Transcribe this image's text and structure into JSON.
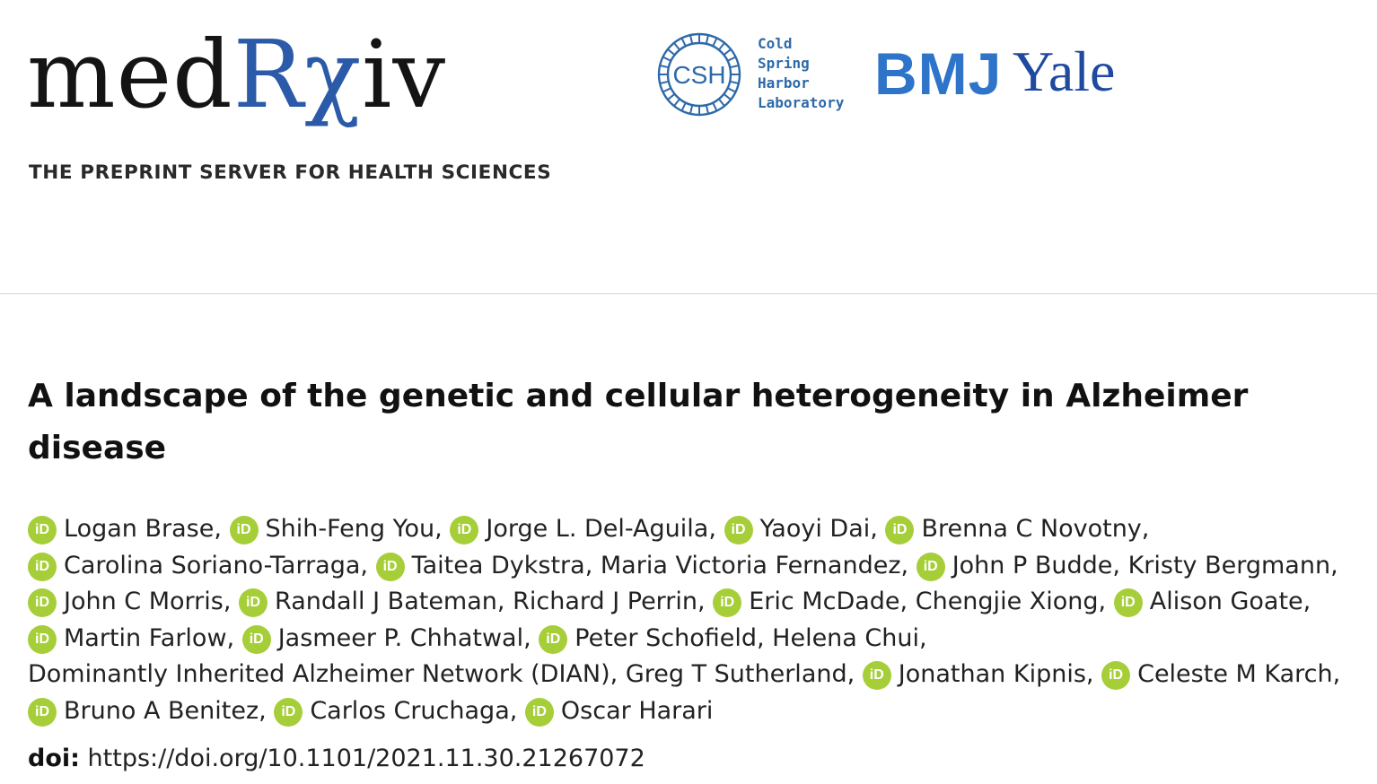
{
  "header": {
    "logo": {
      "text_dark": "med",
      "text_blue": "Rχ",
      "text_dark_end": "iv",
      "tagline": "THE PREPRINT SERVER FOR HEALTH SCIENCES"
    },
    "partners": {
      "csh_badge": "CSH",
      "csh_name": "Cold\nSpring\nHarbor\nLaboratory",
      "bmj": "BMJ",
      "yale": "Yale"
    },
    "colors": {
      "brand_blue": "#2b5aa8",
      "orcid_green": "#a6ce39",
      "csh_blue": "#2e6aa8",
      "bmj_blue": "#2e74c9",
      "yale_blue": "#1f4aa0"
    }
  },
  "article": {
    "title": "A landscape of the genetic and cellular heterogeneity in Alzheimer disease",
    "orcid_icon_text": "iD",
    "authors": [
      {
        "name": "Logan Brase",
        "orcid": true
      },
      {
        "name": "Shih-Feng You",
        "orcid": true
      },
      {
        "name": "Jorge L. Del-Aguila",
        "orcid": true
      },
      {
        "name": "Yaoyi Dai",
        "orcid": true
      },
      {
        "name": "Brenna C Novotny",
        "orcid": true
      },
      {
        "name": "Carolina Soriano-Tarraga",
        "orcid": true
      },
      {
        "name": "Taitea Dykstra",
        "orcid": true
      },
      {
        "name": "Maria Victoria Fernandez",
        "orcid": false
      },
      {
        "name": "John P Budde",
        "orcid": true
      },
      {
        "name": "Kristy Bergmann",
        "orcid": false
      },
      {
        "name": "John C Morris",
        "orcid": true
      },
      {
        "name": "Randall J Bateman",
        "orcid": true
      },
      {
        "name": "Richard J Perrin",
        "orcid": false
      },
      {
        "name": "Eric McDade",
        "orcid": true
      },
      {
        "name": "Chengjie Xiong",
        "orcid": false
      },
      {
        "name": "Alison Goate",
        "orcid": true
      },
      {
        "name": "Martin Farlow",
        "orcid": true
      },
      {
        "name": "Jasmeer P. Chhatwal",
        "orcid": true
      },
      {
        "name": "Peter Schofield",
        "orcid": true
      },
      {
        "name": "Helena Chui",
        "orcid": false
      },
      {
        "name": "Dominantly Inherited Alzheimer Network (DIAN)",
        "orcid": false
      },
      {
        "name": "Greg T Sutherland",
        "orcid": false
      },
      {
        "name": "Jonathan Kipnis",
        "orcid": true
      },
      {
        "name": "Celeste M Karch",
        "orcid": true
      },
      {
        "name": "Bruno A Benitez",
        "orcid": true
      },
      {
        "name": "Carlos Cruchaga",
        "orcid": true
      },
      {
        "name": "Oscar Harari",
        "orcid": true
      }
    ],
    "doi_label": "doi:",
    "doi_url": "https://doi.org/10.1101/2021.11.30.21267072"
  }
}
